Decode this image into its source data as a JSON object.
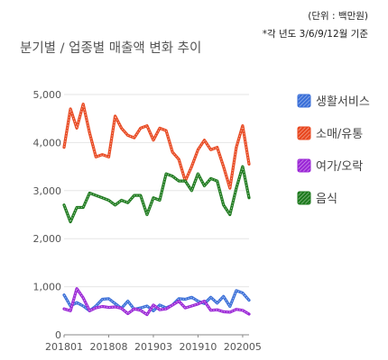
{
  "notes": {
    "unit": "(단위 : 백만원)",
    "basis": "*각 년도 3/6/9/12월 기준"
  },
  "chart_data": {
    "type": "line",
    "title": "분기별 / 업종별 매출액 변화 추이",
    "xlabel": "",
    "ylabel": "",
    "ylim": [
      0,
      5000
    ],
    "y_ticks": [
      "0",
      "1,000",
      "2,000",
      "3,000",
      "4,000",
      "5,000"
    ],
    "x_tick_labels": [
      "201801",
      "201808",
      "201903",
      "201910",
      "202005"
    ],
    "x_tick_index": [
      0,
      7,
      14,
      21,
      28
    ],
    "grid": "horizontal",
    "legend_position": "right",
    "series": [
      {
        "name": "생활서비스",
        "color": "#3a6fd8",
        "values": [
          830,
          600,
          670,
          600,
          500,
          600,
          740,
          750,
          650,
          550,
          700,
          530,
          560,
          600,
          500,
          620,
          560,
          620,
          750,
          740,
          780,
          700,
          650,
          780,
          660,
          800,
          590,
          920,
          870,
          720
        ]
      },
      {
        "name": "소매/유통",
        "color": "#e8471f",
        "values": [
          3900,
          4700,
          4300,
          4800,
          4200,
          3700,
          3750,
          3700,
          4550,
          4300,
          4150,
          4100,
          4300,
          4350,
          4050,
          4300,
          4250,
          3800,
          3650,
          3200,
          3500,
          3850,
          4050,
          3850,
          3900,
          3500,
          3050,
          3900,
          4350,
          3550
        ]
      },
      {
        "name": "여가/오락",
        "color": "#9b27d6",
        "values": [
          540,
          500,
          960,
          770,
          500,
          560,
          590,
          570,
          580,
          550,
          440,
          540,
          510,
          420,
          620,
          520,
          540,
          620,
          700,
          560,
          600,
          640,
          700,
          510,
          520,
          480,
          470,
          530,
          510,
          430
        ]
      },
      {
        "name": "음식",
        "color": "#1d7a1d",
        "values": [
          2700,
          2350,
          2650,
          2650,
          2950,
          2900,
          2850,
          2800,
          2700,
          2800,
          2750,
          2900,
          2900,
          2500,
          2850,
          2800,
          3350,
          3300,
          3200,
          3200,
          3000,
          3350,
          3100,
          3250,
          3200,
          2700,
          2500,
          3050,
          3500,
          2850
        ]
      }
    ]
  }
}
